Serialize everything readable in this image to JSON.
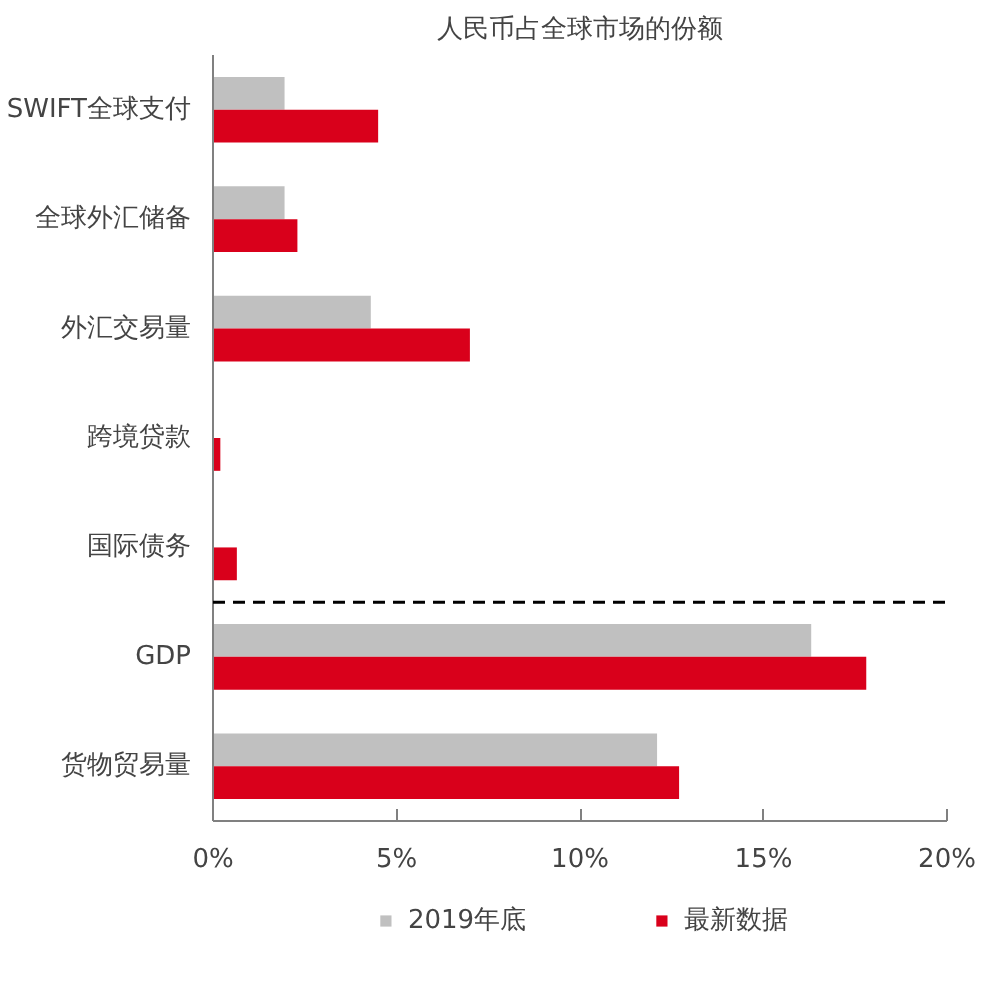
{
  "chart_data": {
    "type": "bar",
    "orientation": "horizontal",
    "title": "人民币占全球市场的份额",
    "categories": [
      "SWIFT全球支付",
      "全球外汇储备",
      "外汇交易量",
      "跨境贷款",
      "国际债务",
      "GDP",
      "货物贸易量"
    ],
    "series": [
      {
        "name": "2019年底",
        "color": "#c0c0c0",
        "values": [
          1.95,
          1.95,
          4.3,
          null,
          null,
          16.3,
          12.1
        ]
      },
      {
        "name": "最新数据",
        "color": "#d9001b",
        "values": [
          4.5,
          2.3,
          7.0,
          0.2,
          0.65,
          17.8,
          12.7
        ]
      }
    ],
    "xlim": [
      0,
      20
    ],
    "xticks": [
      {
        "value": 0,
        "label": "0%"
      },
      {
        "value": 5,
        "label": "5%"
      },
      {
        "value": 10,
        "label": "10%"
      },
      {
        "value": 15,
        "label": "15%"
      },
      {
        "value": 20,
        "label": "20%"
      }
    ],
    "grid": false,
    "legend": "bottom"
  }
}
